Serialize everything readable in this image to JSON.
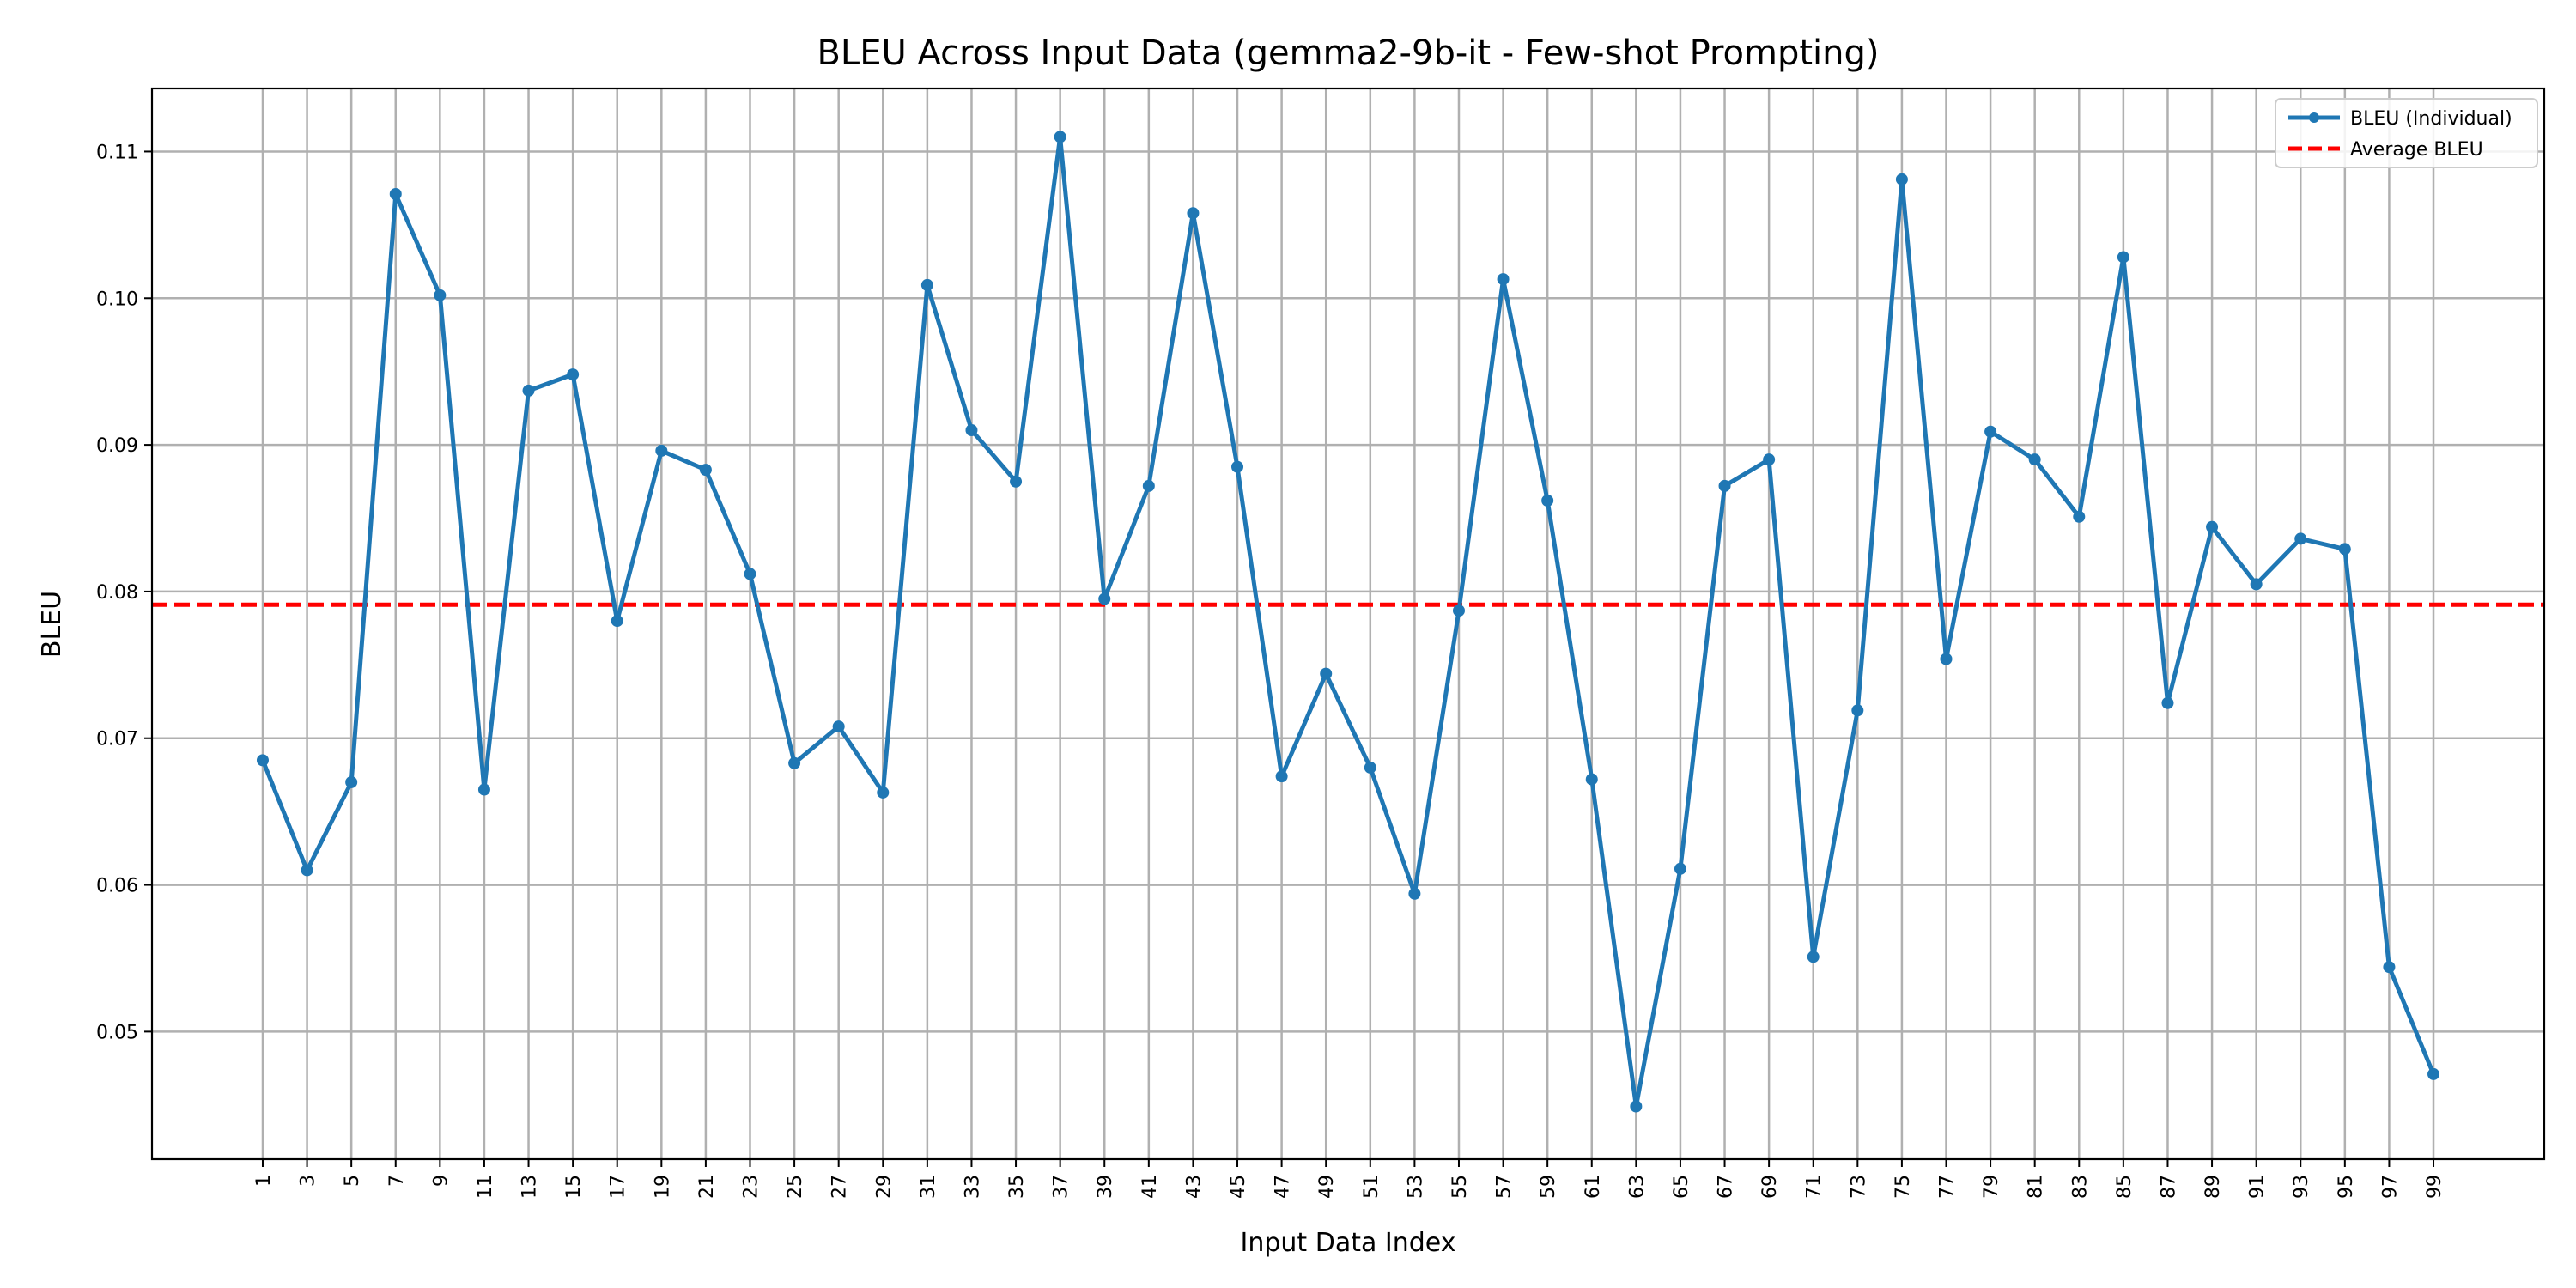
{
  "chart_data": {
    "type": "line",
    "title": "BLEU Across Input Data (gemma2-9b-it - Few-shot Prompting)",
    "xlabel": "Input Data Index",
    "ylabel": "BLEU",
    "x": [
      1,
      3,
      5,
      7,
      9,
      11,
      13,
      15,
      17,
      19,
      21,
      23,
      25,
      27,
      29,
      31,
      33,
      35,
      37,
      39,
      41,
      43,
      45,
      47,
      49,
      51,
      53,
      55,
      57,
      59,
      61,
      63,
      65,
      67,
      69,
      71,
      73,
      75,
      77,
      79,
      81,
      83,
      85,
      87,
      89,
      91,
      93,
      95,
      97,
      99
    ],
    "xlim": [
      -4,
      104
    ],
    "ylim": [
      0.0413,
      0.1143
    ],
    "yticks": [
      0.05,
      0.06,
      0.07,
      0.08,
      0.09,
      0.1,
      0.11
    ],
    "ytick_labels": [
      "0.05",
      "0.06",
      "0.07",
      "0.08",
      "0.09",
      "0.10",
      "0.11"
    ],
    "grid": true,
    "legend_position": "top-right",
    "series": [
      {
        "name": "BLEU (Individual)",
        "color": "#1f77b4",
        "style": "solid-with-markers",
        "values": [
          0.0685,
          0.061,
          0.067,
          0.1071,
          0.1002,
          0.0665,
          0.0937,
          0.0948,
          0.078,
          0.0896,
          0.0883,
          0.0812,
          0.0683,
          0.0708,
          0.0663,
          0.1009,
          0.091,
          0.0875,
          0.111,
          0.0795,
          0.0872,
          0.1058,
          0.0885,
          0.0674,
          0.0744,
          0.068,
          0.0594,
          0.0787,
          0.1013,
          0.0862,
          0.0672,
          0.0449,
          0.0611,
          0.0872,
          0.089,
          0.0551,
          0.0719,
          0.1081,
          0.0754,
          0.0909,
          0.089,
          0.0851,
          0.1028,
          0.0724,
          0.0844,
          0.0805,
          0.0836,
          0.0829,
          0.0544,
          0.0471
        ]
      },
      {
        "name": "Average BLEU",
        "color": "#ff0000",
        "style": "dashed",
        "value": 0.0791
      }
    ]
  }
}
